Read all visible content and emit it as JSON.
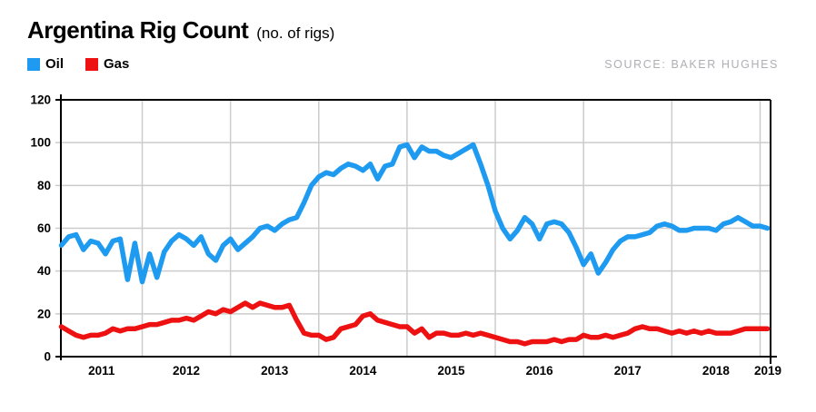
{
  "header": {
    "title": "Argentina Rig Count",
    "subtitle": "(no. of rigs)"
  },
  "legend": [
    {
      "label": "Oil",
      "color": "#1E9BF0"
    },
    {
      "label": "Gas",
      "color": "#ED1111"
    }
  ],
  "source": "SOURCE: BAKER HUGHES",
  "colors": {
    "grid": "#cccccc",
    "axis": "#000000",
    "background": "#ffffff",
    "source_text": "#aeaeb4"
  },
  "chart_data": {
    "type": "line",
    "title": "Argentina Rig Count",
    "subtitle": "(no. of rigs)",
    "x_interval": "monthly",
    "x_start": "2011-02",
    "x_end": "2019-02",
    "x_axis_labels": [
      "2011",
      "2012",
      "2013",
      "2014",
      "2015",
      "2016",
      "2017",
      "2018",
      "2019"
    ],
    "y_ticks": [
      0,
      20,
      40,
      60,
      80,
      100,
      120
    ],
    "ylim": [
      0,
      120
    ],
    "grid": true,
    "legend_position": "top-left",
    "series": [
      {
        "name": "Oil",
        "color": "#1E9BF0",
        "values": [
          52,
          56,
          57,
          50,
          54,
          53,
          48,
          54,
          55,
          36,
          53,
          35,
          48,
          37,
          49,
          54,
          57,
          55,
          52,
          56,
          48,
          45,
          52,
          55,
          50,
          53,
          56,
          60,
          61,
          59,
          62,
          64,
          65,
          72,
          80,
          84,
          86,
          85,
          88,
          90,
          89,
          87,
          90,
          83,
          89,
          90,
          98,
          99,
          93,
          98,
          96,
          96,
          94,
          93,
          95,
          97,
          99,
          90,
          80,
          68,
          60,
          55,
          59,
          65,
          62,
          55,
          62,
          63,
          62,
          58,
          51,
          43,
          48,
          39,
          44,
          50,
          54,
          56,
          56,
          57,
          58,
          61,
          62,
          61,
          59,
          59,
          60,
          60,
          60,
          59,
          62,
          63,
          65,
          63,
          61,
          61,
          60
        ]
      },
      {
        "name": "Gas",
        "color": "#ED1111",
        "values": [
          14,
          12,
          10,
          9,
          10,
          10,
          11,
          13,
          12,
          13,
          13,
          14,
          15,
          15,
          16,
          17,
          17,
          18,
          17,
          19,
          21,
          20,
          22,
          21,
          23,
          25,
          23,
          25,
          24,
          23,
          23,
          24,
          17,
          11,
          10,
          10,
          8,
          9,
          13,
          14,
          15,
          19,
          20,
          17,
          16,
          15,
          14,
          14,
          11,
          13,
          9,
          11,
          11,
          10,
          10,
          11,
          10,
          11,
          10,
          9,
          8,
          7,
          7,
          6,
          7,
          7,
          7,
          8,
          7,
          8,
          8,
          10,
          9,
          9,
          10,
          9,
          10,
          11,
          13,
          14,
          13,
          13,
          12,
          11,
          12,
          11,
          12,
          11,
          12,
          11,
          11,
          11,
          12,
          13,
          13,
          13,
          13
        ]
      }
    ]
  }
}
